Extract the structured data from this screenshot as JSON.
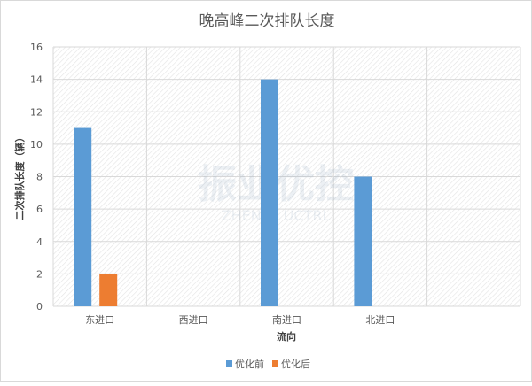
{
  "chart_data": {
    "type": "bar",
    "title": "晚高峰二次排队长度",
    "xlabel": "流向",
    "ylabel": "二次排队长度（辆）",
    "categories": [
      "东进口",
      "西进口",
      "南进口",
      "北进口",
      ""
    ],
    "series": [
      {
        "name": "优化前",
        "color": "#5b9bd5",
        "values": [
          11,
          0,
          14,
          8,
          null
        ]
      },
      {
        "name": "优化后",
        "color": "#ed7d31",
        "values": [
          2,
          0,
          0,
          0,
          null
        ]
      }
    ],
    "ylim": [
      0,
      16
    ],
    "yticks": [
      0,
      2,
      4,
      6,
      8,
      10,
      12,
      14,
      16
    ],
    "grid": true,
    "legend_position": "bottom"
  },
  "watermark": {
    "text": "振业优控",
    "subtext": "ZHENYE UCTRL"
  }
}
